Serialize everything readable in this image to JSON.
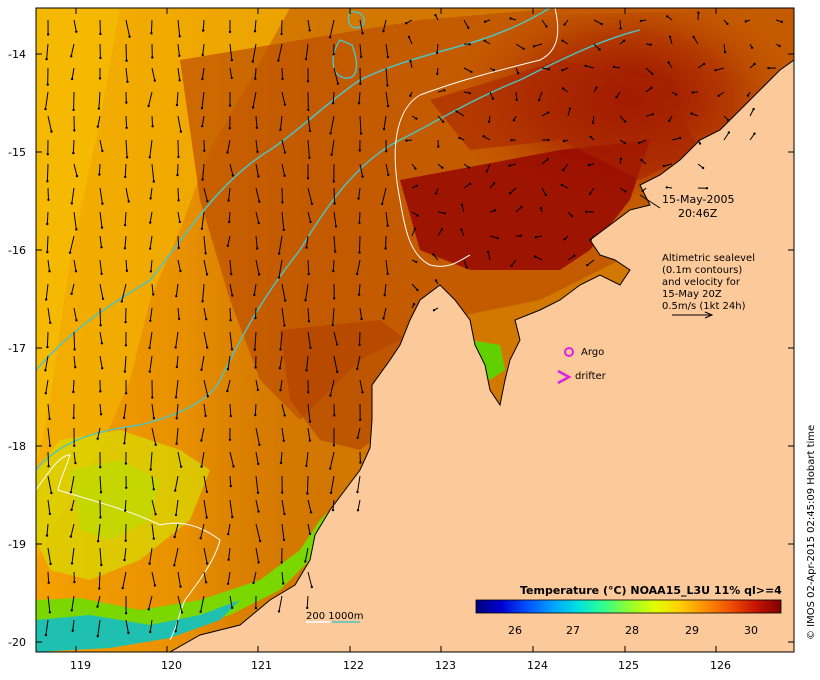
{
  "map": {
    "date_label": "15-May-2005",
    "time_label": "20:46Z",
    "altimetry_lines": [
      "Altimetric sealevel",
      "(0.1m contours)",
      "and velocity for",
      "15-May 20Z",
      "0.5m/s (1kt 24h)"
    ],
    "argo_label": "Argo",
    "drifter_label": "drifter",
    "bathy_label": "200  1000m",
    "credit": "© IMOS 02-Apr-2015 02:45:09 Hobart time",
    "lon_ticks": [
      "119",
      "120",
      "121",
      "122",
      "123",
      "124",
      "125",
      "126"
    ],
    "lat_ticks": [
      "-14",
      "-15",
      "-16",
      "-17",
      "-18",
      "-19",
      "-20"
    ]
  },
  "colorbar": {
    "title": "Temperature (°C) NOAA15_L3U 11% ql>=4",
    "ticks": [
      "26",
      "27",
      "28",
      "29",
      "30"
    ],
    "colors": [
      "#00007f",
      "#0000d0",
      "#0050ff",
      "#00a0ff",
      "#00e0e0",
      "#30ff90",
      "#90ff30",
      "#e0ff00",
      "#ffd000",
      "#ff9000",
      "#f05000",
      "#c81400",
      "#800000"
    ]
  },
  "colors": {
    "land": "#fcc99a",
    "coastline": "#000000",
    "bathy_200": "#ffffff",
    "bathy_1000": "#4fc4c4",
    "argo_marker": "#e020e0",
    "drifter_marker": "#e020e0"
  }
}
